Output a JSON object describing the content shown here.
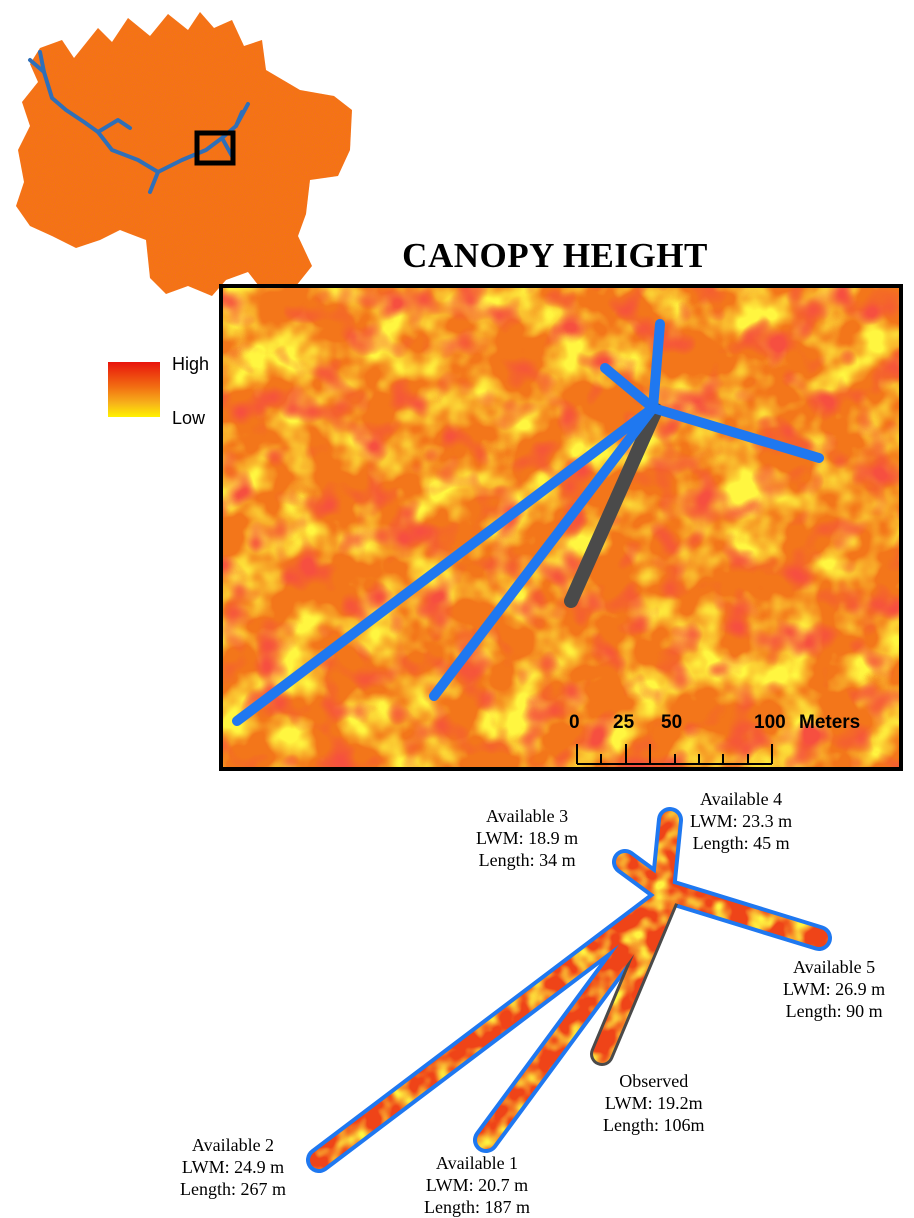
{
  "title": "CANOPY HEIGHT",
  "legend": {
    "high": "High",
    "low": "Low",
    "colors": [
      "#e8140c",
      "#f26d12",
      "#f7b21a",
      "#fff200"
    ]
  },
  "colors": {
    "path_available": "#1f78f0",
    "path_observed": "#4a4a4a",
    "stream": "#2f6fb8",
    "extent_box": "#000000"
  },
  "scale_bar": {
    "ticks": [
      "0",
      "25",
      "50",
      "100"
    ],
    "unit": "Meters"
  },
  "paths": [
    {
      "id": "available-1",
      "name": "Available 1",
      "lwm": "LWM: 20.7 m",
      "length": "Length: 187 m"
    },
    {
      "id": "available-2",
      "name": "Available 2",
      "lwm": "LWM: 24.9 m",
      "length": "Length: 267 m"
    },
    {
      "id": "available-3",
      "name": "Available 3",
      "lwm": "LWM: 18.9 m",
      "length": "Length: 34 m"
    },
    {
      "id": "available-4",
      "name": "Available 4",
      "lwm": "LWM: 23.3 m",
      "length": "Length: 45 m"
    },
    {
      "id": "available-5",
      "name": "Available 5",
      "lwm": "LWM: 26.9 m",
      "length": "Length: 90 m"
    },
    {
      "id": "observed",
      "name": "Observed",
      "lwm": "LWM: 19.2m",
      "length": "Length: 106m"
    }
  ]
}
